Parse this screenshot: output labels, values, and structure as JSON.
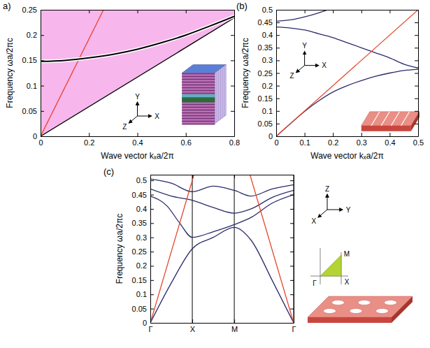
{
  "chart_data": [
    {
      "type": "line",
      "panel_label": "a)",
      "x_label": "Wave vector kₓa/2π",
      "y_label": "Frequency ωa/2πc",
      "xlim": [
        0,
        0.8
      ],
      "ylim": [
        0,
        0.25
      ],
      "xticks": [
        0,
        0.2,
        0.4,
        0.6,
        0.8
      ],
      "yticks": [
        0,
        0.05,
        0.1,
        0.15,
        0.2,
        0.25
      ],
      "series": [
        {
          "type": "area",
          "color": "#f7b6ec",
          "x": [
            0,
            0.8
          ],
          "values": [
            0,
            0.234
          ]
        },
        {
          "type": "line",
          "color": "#000000",
          "x": [
            0,
            0.8
          ],
          "values": [
            0,
            0.234
          ]
        },
        {
          "type": "line",
          "color": "#e8442a",
          "x": [
            0,
            0.26
          ],
          "values": [
            0,
            0.25
          ]
        },
        {
          "type": "line",
          "color": "#000000",
          "line_style": "outlined",
          "x": [
            0,
            0.1,
            0.2,
            0.3,
            0.4,
            0.5,
            0.6,
            0.7,
            0.8
          ],
          "values": [
            0.148,
            0.15,
            0.155,
            0.162,
            0.172,
            0.185,
            0.2,
            0.218,
            0.237
          ]
        }
      ],
      "inset_labels": [
        "Y",
        "Z",
        "X"
      ]
    },
    {
      "type": "line",
      "panel_label": "(b)",
      "x_label": "Wave vector kₓa/2π",
      "y_label": "Frequency ωa/2πc",
      "xlim": [
        0,
        0.5
      ],
      "ylim": [
        0,
        0.5
      ],
      "xticks": [
        0,
        0.1,
        0.2,
        0.3,
        0.4,
        0.5
      ],
      "yticks": [
        0,
        0.05,
        0.1,
        0.15,
        0.2,
        0.25,
        0.3,
        0.35,
        0.4,
        0.45,
        0.5
      ],
      "series": [
        {
          "type": "line",
          "color": "#2b2b6b",
          "x": [
            0,
            0.05,
            0.1,
            0.15,
            0.2,
            0.25,
            0.3,
            0.35,
            0.4,
            0.45,
            0.5
          ],
          "values": [
            0,
            0.05,
            0.098,
            0.14,
            0.175,
            0.2,
            0.22,
            0.237,
            0.25,
            0.26,
            0.265
          ]
        },
        {
          "type": "line",
          "color": "#2b2b6b",
          "x": [
            0,
            0.05,
            0.1,
            0.15,
            0.2,
            0.25,
            0.3,
            0.35,
            0.4,
            0.45,
            0.5
          ],
          "values": [
            0.432,
            0.428,
            0.42,
            0.405,
            0.39,
            0.37,
            0.35,
            0.33,
            0.31,
            0.285,
            0.27
          ]
        },
        {
          "type": "line",
          "color": "#2b2b6b",
          "x": [
            0,
            0.05,
            0.1,
            0.15,
            0.18
          ],
          "values": [
            0.455,
            0.46,
            0.472,
            0.488,
            0.5
          ]
        },
        {
          "type": "line",
          "color": "#e8442a",
          "x": [
            0,
            0.5
          ],
          "values": [
            0,
            0.5
          ]
        }
      ],
      "inset_labels": [
        "Y",
        "X",
        "Z"
      ]
    },
    {
      "type": "line",
      "panel_label": "(c)",
      "y_label": "Frequency ωa/2πc",
      "xlim": [
        0,
        1.7071
      ],
      "ylim": [
        0,
        0.52
      ],
      "grid": "x",
      "xticks": [
        {
          "value": 0,
          "label": "Γ"
        },
        {
          "value": 0.5,
          "label": "X"
        },
        {
          "value": 1,
          "label": "M"
        },
        {
          "value": 1.7071,
          "label": "Γ"
        }
      ],
      "yticks": [
        0,
        0.05,
        0.1,
        0.15,
        0.2,
        0.25,
        0.3,
        0.35,
        0.4,
        0.45,
        0.5
      ],
      "series": [
        {
          "type": "line",
          "color": "#2b2b6b",
          "x": [
            0,
            0.25,
            0.5,
            0.75,
            1,
            1.2,
            1.45,
            1.7071
          ],
          "values": [
            0,
            0.14,
            0.26,
            0.3,
            0.335,
            0.29,
            0.15,
            0
          ]
        },
        {
          "type": "line",
          "color": "#2b2b6b",
          "x": [
            0,
            0.2,
            0.35,
            0.5,
            0.75,
            1,
            1.2,
            1.45,
            1.7071
          ],
          "values": [
            0.445,
            0.41,
            0.35,
            0.3,
            0.32,
            0.345,
            0.37,
            0.42,
            0.45
          ]
        },
        {
          "type": "line",
          "color": "#2b2b6b",
          "x": [
            0,
            0.25,
            0.5,
            0.75,
            1,
            1.2,
            1.45,
            1.7071
          ],
          "values": [
            0.47,
            0.445,
            0.43,
            0.405,
            0.385,
            0.4,
            0.44,
            0.465
          ]
        },
        {
          "type": "line",
          "color": "#2b2b6b",
          "x": [
            0,
            0.25,
            0.5,
            0.75,
            1,
            1.2,
            1.45,
            1.7071
          ],
          "values": [
            0.505,
            0.49,
            0.46,
            0.48,
            0.465,
            0.445,
            0.47,
            0.485
          ]
        },
        {
          "type": "line",
          "color": "#e8442a",
          "x": [
            0,
            0.52
          ],
          "values": [
            0,
            0.52
          ]
        },
        {
          "type": "line",
          "color": "#e8442a",
          "x": [
            1.187,
            1.7071
          ],
          "values": [
            0.52,
            0
          ]
        }
      ],
      "inset_labels": [
        "Z",
        "Y",
        "X"
      ],
      "bz_labels": [
        "M",
        "X",
        "Γ"
      ]
    }
  ]
}
